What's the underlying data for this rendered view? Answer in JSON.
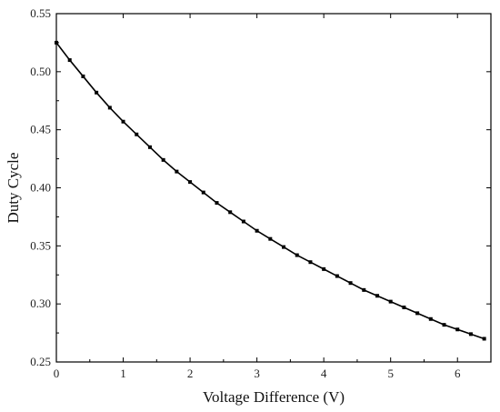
{
  "chart_data": {
    "type": "line",
    "title": "",
    "xlabel": "Voltage Difference (V)",
    "ylabel": "Duty Cycle",
    "xlim": [
      0,
      6.5
    ],
    "ylim": [
      0.25,
      0.55
    ],
    "x_ticks": [
      "0",
      "1",
      "2",
      "3",
      "4",
      "5",
      "6"
    ],
    "y_ticks": [
      "0.25",
      "0.30",
      "0.35",
      "0.40",
      "0.45",
      "0.50",
      "0.55"
    ],
    "grid": false,
    "legend": "none",
    "line_color": "#000000",
    "marker": "square",
    "series": [
      {
        "x": [
          0,
          0.2,
          0.4,
          0.6,
          0.8,
          1.0,
          1.2,
          1.4,
          1.6,
          1.8,
          2.0,
          2.2,
          2.4,
          2.6,
          2.8,
          3.0,
          3.2,
          3.4,
          3.6,
          3.8,
          4.0,
          4.2,
          4.4,
          4.6,
          4.8,
          5.0,
          5.2,
          5.4,
          5.6,
          5.8,
          6.0,
          6.2,
          6.4
        ],
        "y": [
          0.525,
          0.51,
          0.496,
          0.482,
          0.469,
          0.457,
          0.446,
          0.435,
          0.424,
          0.414,
          0.405,
          0.396,
          0.387,
          0.379,
          0.371,
          0.363,
          0.356,
          0.349,
          0.342,
          0.336,
          0.33,
          0.324,
          0.318,
          0.312,
          0.307,
          0.302,
          0.297,
          0.292,
          0.287,
          0.282,
          0.278,
          0.274,
          0.27
        ]
      }
    ]
  }
}
